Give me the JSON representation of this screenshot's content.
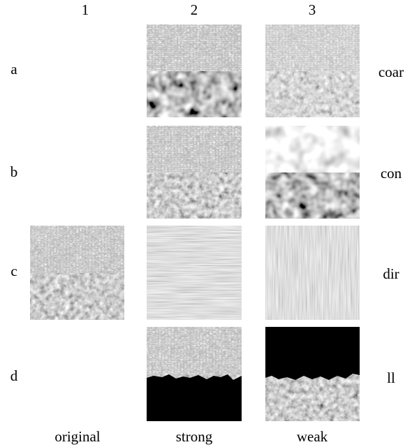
{
  "column_headers": [
    "1",
    "2",
    "3"
  ],
  "row_labels": [
    "a",
    "b",
    "c",
    "d"
  ],
  "row_names": [
    "coar",
    "con",
    "dir",
    "ll"
  ],
  "column_names": [
    "original",
    "strong",
    "weak"
  ]
}
